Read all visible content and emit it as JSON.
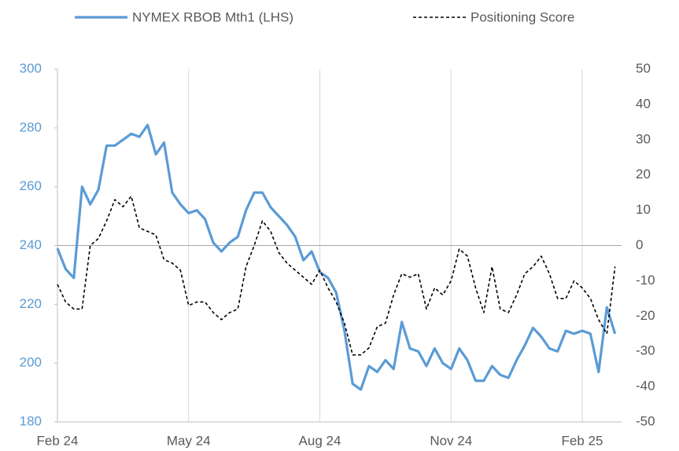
{
  "chart_data": {
    "type": "line",
    "categories": [
      "Feb 24",
      null,
      null,
      null,
      null,
      null,
      null,
      null,
      null,
      null,
      null,
      null,
      null,
      null,
      null,
      null,
      "May 24",
      null,
      null,
      null,
      null,
      null,
      null,
      null,
      null,
      null,
      null,
      null,
      null,
      null,
      null,
      null,
      "Aug 24",
      null,
      null,
      null,
      null,
      null,
      null,
      null,
      null,
      null,
      null,
      null,
      null,
      null,
      null,
      null,
      "Nov 24",
      null,
      null,
      null,
      null,
      null,
      null,
      null,
      null,
      null,
      null,
      null,
      null,
      null,
      null,
      null,
      "Feb 25",
      null,
      null,
      null,
      null
    ],
    "series": [
      {
        "name": "NYMEX RBOB Mth1 (LHS)",
        "color": "#5b9bd5",
        "style": "solid",
        "values": [
          239,
          232,
          229,
          260,
          254,
          259,
          274,
          274,
          276,
          278,
          277,
          281,
          271,
          275,
          258,
          254,
          251,
          252,
          249,
          241,
          238,
          241,
          243,
          252,
          258,
          258,
          253,
          250,
          247,
          243,
          235,
          238,
          231,
          229,
          224,
          211,
          193,
          191,
          199,
          197,
          201,
          198,
          214,
          205,
          204,
          199,
          205,
          200,
          198,
          205,
          201,
          194,
          194,
          199,
          196,
          195,
          201,
          206,
          212,
          209,
          205,
          204,
          211,
          210,
          211,
          210,
          197,
          219,
          210
        ]
      },
      {
        "name": "Positioning Score",
        "color": "#000000",
        "style": "dashed",
        "axis": "y2",
        "values": [
          -11,
          -16,
          -18,
          -18,
          0,
          2,
          7,
          13,
          11,
          14,
          5,
          4,
          3,
          -4,
          -5,
          -7,
          -17,
          -16,
          -16,
          -19,
          -21,
          -19,
          -18,
          -6,
          0,
          7,
          4,
          -2,
          -5,
          -7,
          -9,
          -11,
          -7,
          -12,
          -16,
          -22,
          -31,
          -31,
          -29,
          -23,
          -22,
          -14,
          -8,
          -9,
          -8,
          -18,
          -12,
          -14,
          -10,
          -1,
          -3,
          -12,
          -19,
          -6,
          -18,
          -19,
          -14,
          -8,
          -6,
          -3,
          -8,
          -15,
          -15,
          -10,
          -12,
          -15,
          -21,
          -25,
          -6
        ]
      }
    ],
    "ylim": [
      180,
      300
    ],
    "yticks": [
      180,
      200,
      220,
      240,
      260,
      280,
      300
    ],
    "y2lim": [
      -50,
      50
    ],
    "y2ticks": [
      -50,
      -40,
      -30,
      -20,
      -10,
      0,
      10,
      20,
      30,
      40,
      50
    ],
    "grid": "x",
    "legend": "top"
  }
}
